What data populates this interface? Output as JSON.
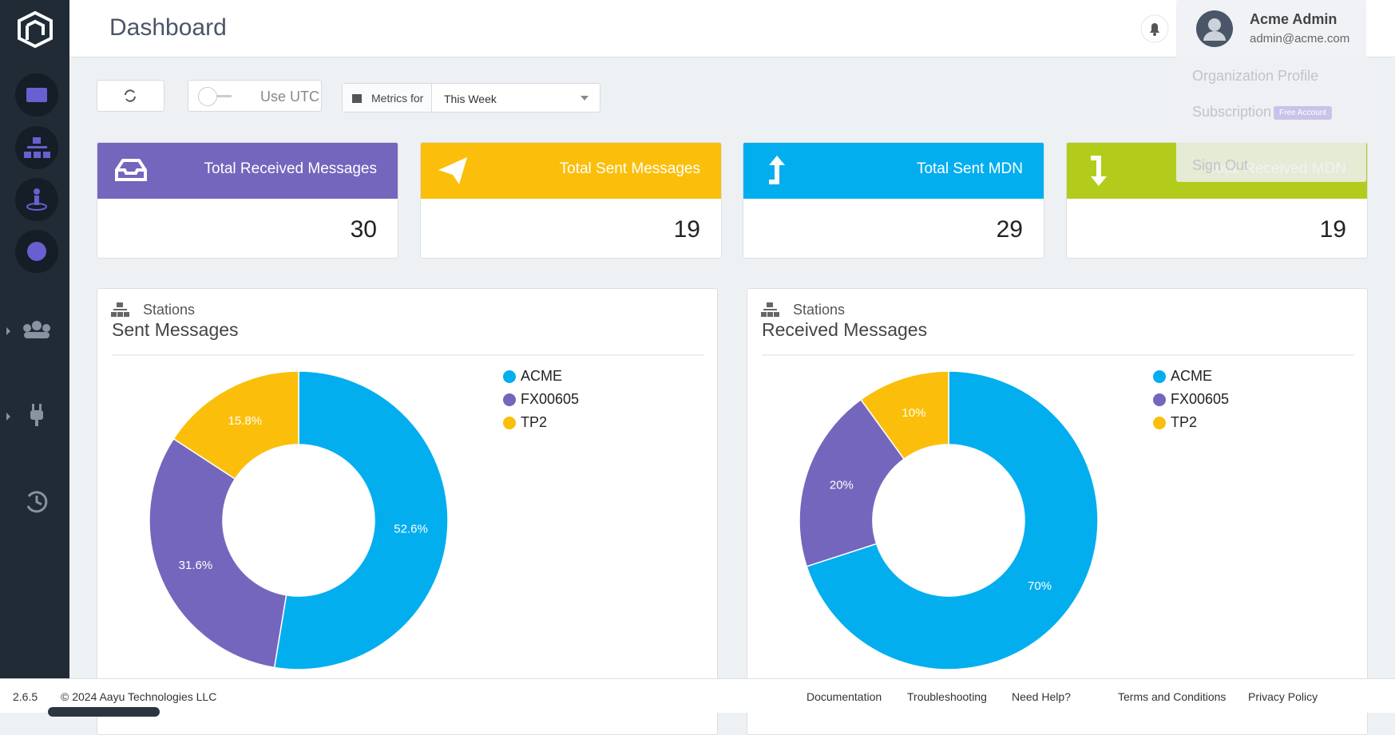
{
  "header": {
    "title": "Dashboard",
    "user_name": "Acme Admin",
    "user_email": "admin@acme.com"
  },
  "user_menu": {
    "items": [
      "Organization Profile",
      "Subscription",
      "Sign Out"
    ],
    "badge": "Free Account"
  },
  "toolbar": {
    "utc_label": "Use UTC",
    "metrics_label": "Metrics for",
    "period": "This Week"
  },
  "cards": [
    {
      "title": "Total Received Messages",
      "value": 30
    },
    {
      "title": "Total Sent Messages",
      "value": 19
    },
    {
      "title": "Total Sent MDN",
      "value": 29
    },
    {
      "title": "Total Received MDN",
      "value": 19
    }
  ],
  "chart_data": [
    {
      "type": "pie",
      "section": "Stations",
      "title": "Sent Messages",
      "categories": [
        "ACME",
        "FX00605",
        "TP2"
      ],
      "values": [
        52.6,
        31.6,
        15.8
      ],
      "value_labels": [
        "52.6%",
        "31.6%",
        "15.8%"
      ],
      "colors": [
        "#03aeef",
        "#7466bd",
        "#fbbf0b"
      ]
    },
    {
      "type": "pie",
      "section": "Stations",
      "title": "Received Messages",
      "categories": [
        "ACME",
        "FX00605",
        "TP2"
      ],
      "values": [
        70,
        20,
        10
      ],
      "value_labels": [
        "70%",
        "20%",
        "10%"
      ],
      "colors": [
        "#03aeef",
        "#7466bd",
        "#fbbf0b"
      ]
    }
  ],
  "footer": {
    "version": "2.6.5",
    "copyright": "© 2024 Aayu Technologies LLC",
    "links": [
      "Documentation",
      "Troubleshooting",
      "Need Help?",
      "Terms and Conditions",
      "Privacy Policy"
    ]
  }
}
